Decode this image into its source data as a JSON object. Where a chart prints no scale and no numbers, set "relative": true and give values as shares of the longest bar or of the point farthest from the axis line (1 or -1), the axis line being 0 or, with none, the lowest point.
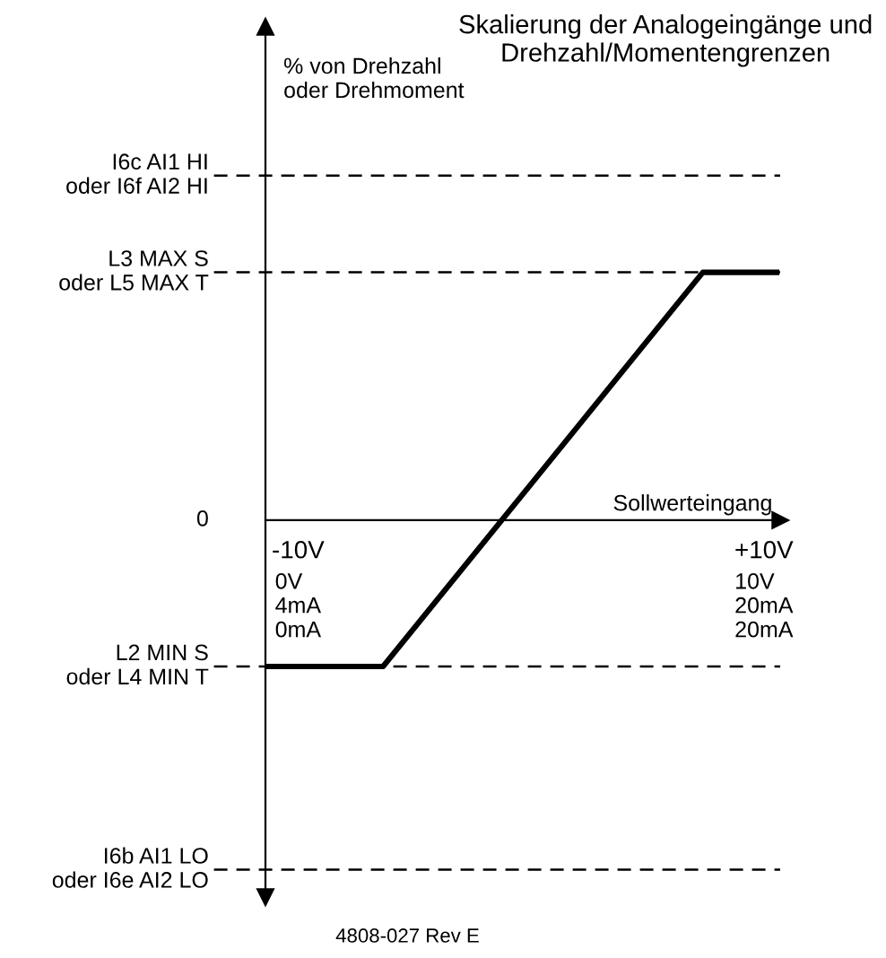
{
  "chart_data": {
    "type": "line",
    "title": "Skalierung der Analogeingänge und\nDrehzahl/Momentengrenzen",
    "xlabel": "Sollwerteingang",
    "relative": true,
    "x": [
      -11.4,
      -6.35,
      7.38,
      10.55
    ],
    "series": [
      {
        "color": "#000000",
        "values": [
          -0.59,
          -0.59,
          1.0,
          1.0
        ]
      }
    ],
    "xlim": [
      -11.4,
      10.7
    ],
    "xticks": [
      {
        "value": -10,
        "label": "-10V"
      },
      {
        "value": 10,
        "label": "+10V"
      }
    ],
    "ref_lines": [
      {
        "axis": "y",
        "value": 1.39,
        "label": "I6c AI1 HI\noder I6f AI2 HI",
        "line_style": "dashed",
        "color": "#000000"
      },
      {
        "axis": "y",
        "value": 1.0,
        "label": "L3 MAX S\noder L5 MAX T",
        "line_style": "dashed",
        "color": "#000000"
      },
      {
        "axis": "y",
        "value": -0.59,
        "label": "L2 MIN S\noder L4 MIN T",
        "line_style": "dashed",
        "color": "#000000"
      },
      {
        "axis": "y",
        "value": -1.41,
        "label": "I6b AI1 LO\noder I6e AI2 LO",
        "line_style": "dashed",
        "color": "#000000"
      }
    ],
    "annotations": [
      "0",
      "4808-027 Rev E",
      "0V\n4mA\n0mA",
      "10V\n20mA\n20mA",
      "% von Drehzahl\noder Drehmoment"
    ],
    "grid": false,
    "legend": false,
    "line_style": "solid",
    "marker": "none"
  }
}
